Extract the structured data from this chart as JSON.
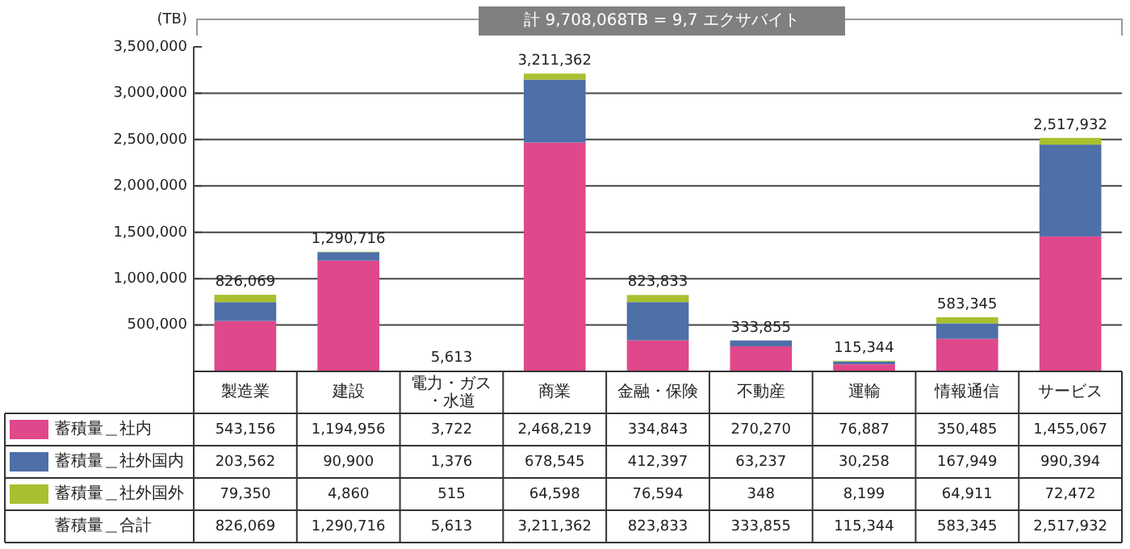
{
  "chart_data": {
    "type": "bar",
    "stacked": true,
    "title": "計 9,708,068TB = 9,7 エクサバイト",
    "ylabel": "(TB)",
    "categories": [
      "製造業",
      "建設",
      "電力・ガス・水道",
      "商業",
      "金融・保険",
      "不動産",
      "運輸",
      "情報通信",
      "サービス"
    ],
    "series": [
      {
        "name": "蓄積量＿社内",
        "color": "#e0488c",
        "values": [
          543156,
          1194956,
          3722,
          2468219,
          334843,
          270270,
          76887,
          350485,
          1455067
        ],
        "value_labels": [
          "543,156",
          "1,194,956",
          "3,722",
          "2,468,219",
          "334,843",
          "270,270",
          "76,887",
          "350,485",
          "1,455,067"
        ]
      },
      {
        "name": "蓄積量＿社外国内",
        "color": "#4e6fa8",
        "values": [
          203562,
          90900,
          1376,
          678545,
          412397,
          63237,
          30258,
          167949,
          990394
        ],
        "value_labels": [
          "203,562",
          "90,900",
          "1,376",
          "678,545",
          "412,397",
          "63,237",
          "30,258",
          "167,949",
          "990,394"
        ]
      },
      {
        "name": "蓄積量＿社外国外",
        "color": "#a8c030",
        "values": [
          79350,
          4860,
          515,
          64598,
          76594,
          348,
          8199,
          64911,
          72472
        ],
        "value_labels": [
          "79,350",
          "4,860",
          "515",
          "64,598",
          "76,594",
          "348",
          "8,199",
          "64,911",
          "72,472"
        ]
      }
    ],
    "annotations": [
      "蓄積量＿合計"
    ],
    "totals": [
      "826,069",
      "1,290,716",
      "5,613",
      "3,211,362",
      "823,833",
      "333,855",
      "115,344",
      "583,345",
      "2,517,932"
    ],
    "ylim": [
      0,
      3500000
    ],
    "yticks": [
      {
        "value": 0,
        "label": null
      },
      {
        "value": 500000,
        "label": "500,000"
      },
      {
        "value": 1000000,
        "label": "1,000,000"
      },
      {
        "value": 1500000,
        "label": "1,500,000"
      },
      {
        "value": 2000000,
        "label": "2,000,000"
      },
      {
        "value": 2500000,
        "label": "2,500,000"
      },
      {
        "value": 3000000,
        "label": "3,000,000"
      },
      {
        "value": 3500000,
        "label": "3,500,000"
      }
    ],
    "grid": "y",
    "legend": "bottom"
  }
}
